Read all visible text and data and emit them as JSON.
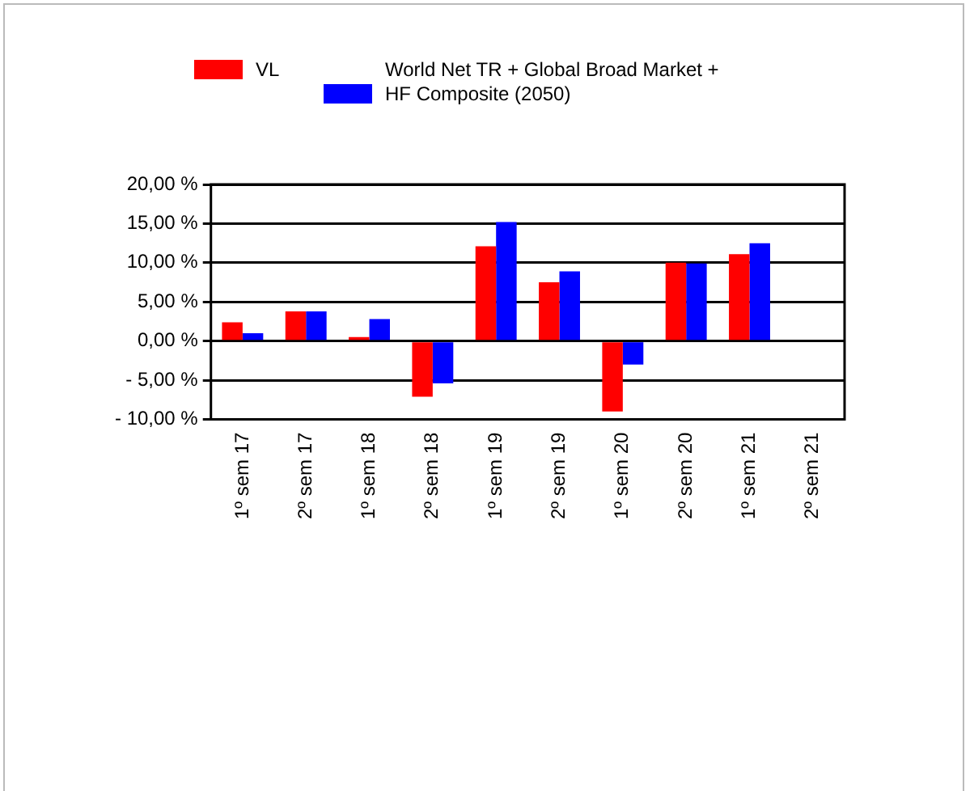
{
  "chart_data": {
    "type": "bar",
    "categories": [
      "1º sem 17",
      "2º sem 17",
      "1º sem 18",
      "2º sem 18",
      "1º sem 19",
      "2º sem 19",
      "1º sem 20",
      "2º sem 20",
      "1º sem 21",
      "2º sem 21"
    ],
    "series": [
      {
        "name": "VL",
        "color": "#ff0000",
        "values": [
          2.4,
          3.8,
          0.5,
          -7.1,
          12.1,
          7.5,
          -9.0,
          10.0,
          11.1,
          null
        ]
      },
      {
        "name": "World Net TR + Global Broad Market + HF Composite (2050)",
        "color": "#0000ff",
        "values": [
          1.0,
          3.8,
          2.8,
          -5.4,
          15.2,
          8.9,
          -3.0,
          9.9,
          12.5,
          null
        ]
      }
    ],
    "ylim": [
      -10,
      20
    ],
    "yticks": [
      {
        "value": -10,
        "label": "- 10,00 %"
      },
      {
        "value": -5,
        "label": "- 5,00 %"
      },
      {
        "value": 0,
        "label": "0,00 %"
      },
      {
        "value": 5,
        "label": "5,00 %"
      },
      {
        "value": 10,
        "label": "10,00 %"
      },
      {
        "value": 15,
        "label": "15,00 %"
      },
      {
        "value": 20,
        "label": "20,00 %"
      }
    ],
    "grid": "y",
    "legend": "top"
  }
}
